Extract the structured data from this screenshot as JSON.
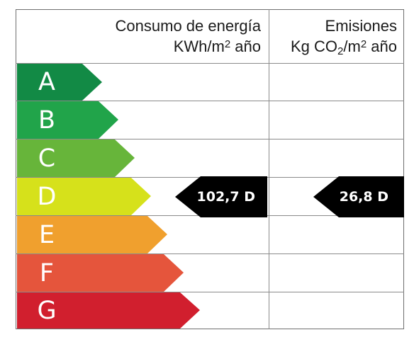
{
  "header": {
    "consumo_line1": "Consumo de energía",
    "consumo_line2_pre": "KWh/m",
    "consumo_line2_sup": "2",
    "consumo_line2_post": " año",
    "emisiones_line1": "Emisiones",
    "emisiones_line2_pre": "Kg CO",
    "emisiones_line2_sub": "2",
    "emisiones_line2_mid": "/m",
    "emisiones_line2_sup": "2",
    "emisiones_line2_post": " año"
  },
  "ratings": [
    {
      "letter": "A",
      "color": "#128a45"
    },
    {
      "letter": "B",
      "color": "#21a44a"
    },
    {
      "letter": "C",
      "color": "#67b53a"
    },
    {
      "letter": "D",
      "color": "#d6e11b"
    },
    {
      "letter": "E",
      "color": "#f0a02e"
    },
    {
      "letter": "F",
      "color": "#e5553c"
    },
    {
      "letter": "G",
      "color": "#d11f2e"
    }
  ],
  "consumo_marker": {
    "label": "102,7 D",
    "value": 102.7,
    "rating": "D"
  },
  "emisiones_marker": {
    "label": "26,8 D",
    "value": 26.8,
    "rating": "D"
  },
  "marker_color": "#000000"
}
